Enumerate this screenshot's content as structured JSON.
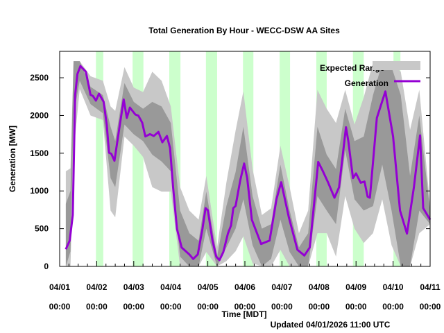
{
  "chart_data": {
    "type": "line",
    "title": "Total Generation By Hour - WECC-DSW AA Sites",
    "xlabel": "Time [MDT]",
    "ylabel": "Generation [MW]",
    "footer": "Updated 04/01/2026 11:00 UTC",
    "ylim": [
      0,
      2850
    ],
    "yticks": [
      0,
      500,
      1000,
      1500,
      2000,
      2500
    ],
    "xlim": [
      "04/01 00:00",
      "04/11 00:00"
    ],
    "xticks": [
      {
        "date": "04/01",
        "time": "00:00"
      },
      {
        "date": "04/02",
        "time": "00:00"
      },
      {
        "date": "04/03",
        "time": "00:00"
      },
      {
        "date": "04/04",
        "time": "00:00"
      },
      {
        "date": "04/05",
        "time": "00:00"
      },
      {
        "date": "04/06",
        "time": "00:00"
      },
      {
        "date": "04/07",
        "time": "00:00"
      },
      {
        "date": "04/08",
        "time": "00:00"
      },
      {
        "date": "04/09",
        "time": "00:00"
      },
      {
        "date": "04/10",
        "time": "00:00"
      },
      {
        "date": "04/11",
        "time": "00:00"
      }
    ],
    "legend": {
      "position": "top-right",
      "entries": [
        "Expected Range",
        "Generation"
      ]
    },
    "colors": {
      "generation": "#9400d3",
      "range_outer": "#c8c8c8",
      "range_inner": "#999999",
      "night": "#ccffcc"
    },
    "night_bands": [
      [
        "04/01 23:30",
        "04/02 04:15"
      ],
      [
        "04/02 23:15",
        "04/03 06:15"
      ],
      [
        "04/03 23:00",
        "04/04 06:15"
      ],
      [
        "04/04 22:45",
        "04/05 06:00"
      ],
      [
        "04/05 22:45",
        "04/06 05:30"
      ],
      [
        "04/06 22:30",
        "04/07 05:15"
      ],
      [
        "04/07 22:15",
        "04/08 05:00"
      ],
      [
        "04/08 22:00",
        "04/09 05:00"
      ],
      [
        "04/10 00:15",
        "04/10 04:45"
      ]
    ],
    "expected_range": {
      "x": [
        "04/01 04:00",
        "04/01 07:00",
        "04/01 09:00",
        "04/01 13:00",
        "04/01 20:00",
        "04/02 04:00",
        "04/02 09:00",
        "04/02 12:00",
        "04/02 18:00",
        "04/03 00:00",
        "04/03 06:00",
        "04/03 12:00",
        "04/03 18:00",
        "04/04 00:00",
        "04/04 06:00",
        "04/04 12:00",
        "04/04 18:00",
        "04/04 23:00",
        "04/05 06:00",
        "04/05 12:00",
        "04/05 18:00",
        "04/05 23:00",
        "04/06 05:00",
        "04/06 11:00",
        "04/06 17:00",
        "04/06 23:00",
        "04/07 05:00",
        "04/07 11:00",
        "04/07 17:00",
        "04/07 23:00",
        "04/08 05:00",
        "04/08 11:00",
        "04/08 17:00",
        "04/08 23:00",
        "04/09 05:00",
        "04/09 11:00",
        "04/09 17:00",
        "04/09 23:00",
        "04/10 05:00",
        "04/10 11:00",
        "04/10 17:00",
        "04/11 00:00"
      ],
      "outer_low": [
        0,
        0,
        1500,
        2350,
        2000,
        1940,
        740,
        650,
        1720,
        1600,
        1450,
        1050,
        990,
        990,
        0,
        0,
        0,
        190,
        0,
        70,
        200,
        400,
        40,
        0,
        0,
        220,
        0,
        0,
        0,
        440,
        440,
        130,
        930,
        500,
        310,
        440,
        890,
        280,
        0,
        0,
        440,
        560
      ],
      "inner_low": [
        0,
        200,
        2000,
        2460,
        2150,
        2030,
        1170,
        1050,
        1880,
        1750,
        1660,
        1480,
        1390,
        1260,
        130,
        0,
        0,
        500,
        0,
        250,
        500,
        890,
        280,
        0,
        100,
        620,
        190,
        0,
        0,
        930,
        740,
        560,
        1540,
        890,
        740,
        800,
        1350,
        740,
        0,
        0,
        740,
        560
      ],
      "inner_high": [
        830,
        1000,
        2720,
        2720,
        2380,
        2270,
        1850,
        1660,
        2430,
        2180,
        2090,
        2180,
        2120,
        1900,
        740,
        440,
        340,
        990,
        130,
        800,
        1250,
        1850,
        930,
        500,
        560,
        1350,
        740,
        250,
        440,
        1850,
        1480,
        1290,
        2090,
        1660,
        1720,
        2270,
        2700,
        2640,
        2270,
        1200,
        2000,
        740
      ],
      "outer_high": [
        1260,
        1300,
        2720,
        2720,
        2520,
        2460,
        2120,
        2060,
        2640,
        2370,
        2310,
        2580,
        2460,
        2120,
        1050,
        740,
        620,
        1200,
        250,
        1110,
        1800,
        2320,
        1290,
        680,
        770,
        1600,
        1050,
        440,
        740,
        2340,
        2090,
        1900,
        2340,
        1880,
        2240,
        2700,
        2700,
        2700,
        2580,
        1810,
        2340,
        800
      ]
    },
    "series": [
      {
        "name": "Generation",
        "x": [
          "04/01 04:00",
          "04/01 06:30",
          "04/01 08:30",
          "04/01 10:00",
          "04/01 11:30",
          "04/01 13:30",
          "04/01 17:00",
          "04/01 20:00",
          "04/01 21:30",
          "04/01 23:30",
          "04/02 01:30",
          "04/02 04:30",
          "04/02 06:30",
          "04/02 08:00",
          "04/02 09:30",
          "04/02 11:30",
          "04/02 14:30",
          "04/02 17:30",
          "04/02 19:30",
          "04/02 21:30",
          "04/03 01:00",
          "04/03 03:00",
          "04/03 05:30",
          "04/03 07:30",
          "04/03 10:30",
          "04/03 13:00",
          "04/03 16:00",
          "04/03 18:30",
          "04/03 21:30",
          "04/03 23:30",
          "04/04 01:30",
          "04/04 04:00",
          "04/04 07:00",
          "04/04 12:00",
          "04/04 14:30",
          "04/04 17:30",
          "04/04 20:30",
          "04/04 22:30",
          "04/05 00:00",
          "04/05 03:00",
          "04/05 05:30",
          "04/05 07:30",
          "04/05 10:00",
          "04/05 13:00",
          "04/05 15:00",
          "04/05 16:30",
          "04/05 18:00",
          "04/05 21:00",
          "04/05 23:30",
          "04/06 01:30",
          "04/06 04:30",
          "04/06 10:30",
          "04/06 16:00",
          "04/06 20:30",
          "04/06 23:30",
          "04/07 04:30",
          "04/07 10:00",
          "04/07 14:30",
          "04/07 18:00",
          "04/07 23:30",
          "04/08 02:30",
          "04/08 06:00",
          "04/08 10:00",
          "04/08 13:00",
          "04/08 17:30",
          "04/08 19:00",
          "04/08 22:00",
          "04/09 00:00",
          "04/09 03:00",
          "04/09 05:30",
          "04/09 07:30",
          "04/09 09:00",
          "04/09 13:30",
          "04/09 19:00",
          "04/10 00:00",
          "04/10 04:30",
          "04/10 09:00",
          "04/10 13:30",
          "04/10 17:30",
          "04/10 19:30",
          "04/11 00:00"
        ],
        "values": [
          227,
          343,
          680,
          2273,
          2549,
          2656,
          2580,
          2273,
          2260,
          2197,
          2289,
          2181,
          1875,
          1507,
          1492,
          1400,
          1814,
          2212,
          1967,
          2105,
          2013,
          1997,
          1905,
          1722,
          1752,
          1728,
          1783,
          1645,
          1728,
          1569,
          1048,
          496,
          251,
          159,
          98,
          159,
          496,
          772,
          744,
          343,
          129,
          83,
          190,
          435,
          542,
          772,
          802,
          1140,
          1363,
          1170,
          619,
          297,
          343,
          894,
          1115,
          649,
          221,
          144,
          251,
          1385,
          1262,
          1109,
          910,
          1048,
          1844,
          1660,
          1170,
          1232,
          1109,
          1124,
          925,
          910,
          1967,
          2319,
          1722,
          741,
          435,
          1048,
          1737,
          772,
          619
        ]
      }
    ]
  }
}
